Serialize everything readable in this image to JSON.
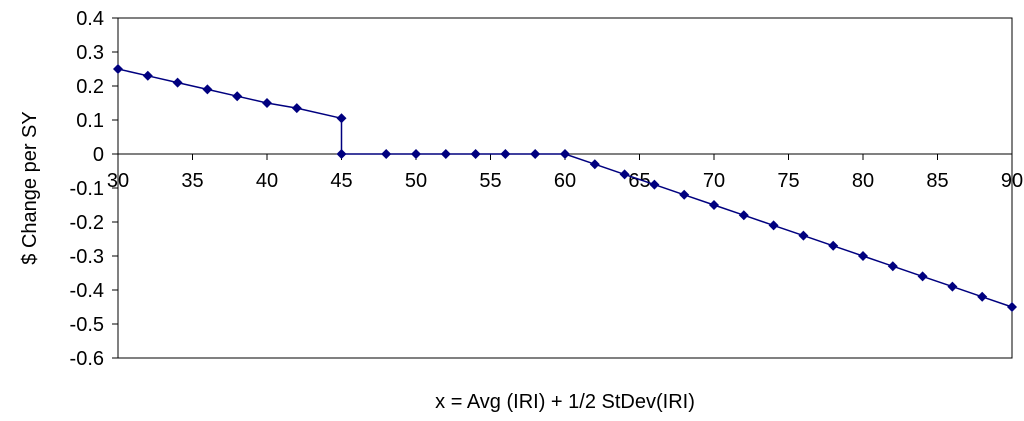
{
  "chart_data": {
    "type": "line",
    "title": "",
    "xlabel": "x = Avg (IRI) + 1/2 StDev(IRI)",
    "ylabel": "$ Change per SY",
    "xlim": [
      30,
      90
    ],
    "ylim": [
      -0.6,
      0.4
    ],
    "x_ticks": [
      30,
      35,
      40,
      45,
      50,
      55,
      60,
      65,
      70,
      75,
      80,
      85,
      90
    ],
    "y_ticks": [
      0.4,
      0.3,
      0.2,
      0.1,
      0,
      -0.1,
      -0.2,
      -0.3,
      -0.4,
      -0.5,
      -0.6
    ],
    "y_tick_labels": [
      "0.4",
      "0.3",
      "0.2",
      "0.1",
      "0",
      "-0.1",
      "-0.2",
      "-0.3",
      "-0.4",
      "-0.5",
      "-0.6"
    ],
    "grid": false,
    "legend": "none",
    "series_color": "#00007f",
    "series": [
      {
        "x": [
          30,
          32,
          34,
          36,
          38,
          40,
          42,
          45,
          45,
          48,
          50,
          52,
          54,
          56,
          58,
          60,
          62,
          64,
          66,
          68,
          70,
          72,
          74,
          76,
          78,
          80,
          82,
          84,
          86,
          88,
          90
        ],
        "y": [
          0.25,
          0.23,
          0.21,
          0.19,
          0.17,
          0.15,
          0.135,
          0.105,
          0,
          0,
          0,
          0,
          0,
          0,
          0,
          0,
          -0.03,
          -0.06,
          -0.09,
          -0.12,
          -0.15,
          -0.18,
          -0.21,
          -0.24,
          -0.27,
          -0.3,
          -0.33,
          -0.36,
          -0.39,
          -0.42,
          -0.45
        ]
      }
    ]
  }
}
